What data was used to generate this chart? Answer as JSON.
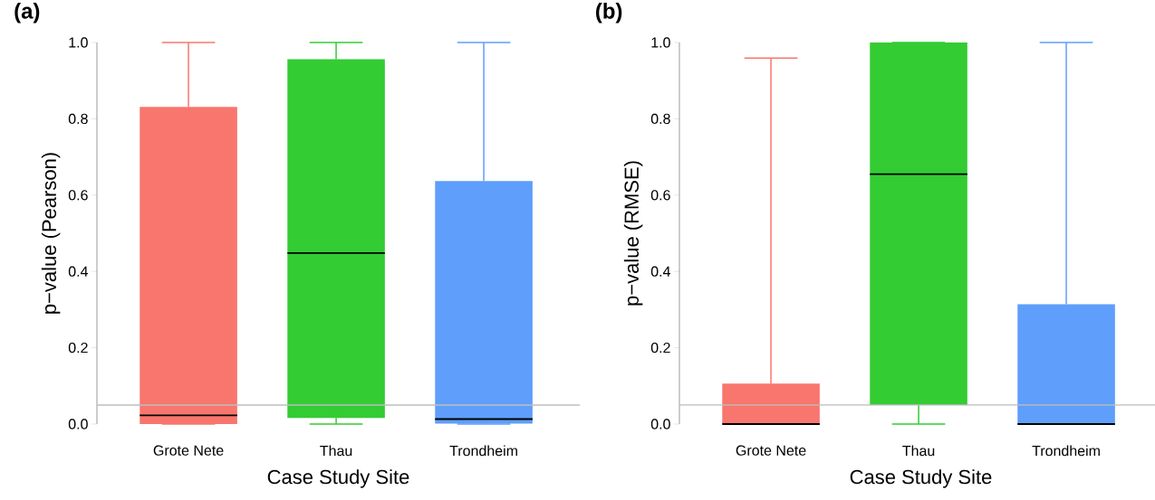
{
  "chart_data": [
    {
      "type": "box",
      "title": "(a)",
      "xlabel": "Case Study Site",
      "ylabel": "p−value (Pearson)",
      "categories": [
        "Grote Nete",
        "Thau",
        "Trondheim"
      ],
      "colors": [
        "#f8766d",
        "#33cc33",
        "#5f9efa"
      ],
      "boxes": [
        {
          "low": 0,
          "q1": 0,
          "median": 0.023,
          "q3": 0.831,
          "high": 1.0
        },
        {
          "low": 0,
          "q1": 0.016,
          "median": 0.448,
          "q3": 0.956,
          "high": 1.0
        },
        {
          "low": 0,
          "q1": 0.001,
          "median": 0.013,
          "q3": 0.637,
          "high": 1.0
        }
      ],
      "ylim": [
        0,
        1
      ],
      "yticks": [
        {
          "value": 0,
          "label": "0.0"
        },
        {
          "value": 0.2,
          "label": "0.2"
        },
        {
          "value": 0.4,
          "label": "0.4"
        },
        {
          "value": 0.6,
          "label": "0.6"
        },
        {
          "value": 0.8,
          "label": "0.8"
        },
        {
          "value": 1,
          "label": "1.0"
        }
      ],
      "ref_lines": [
        {
          "axis": "y",
          "value": 0.05,
          "color": "#bebebe"
        }
      ]
    },
    {
      "type": "box",
      "title": "(b)",
      "xlabel": "Case Study Site",
      "ylabel": "p−value (RMSE)",
      "categories": [
        "Grote Nete",
        "Thau",
        "Trondheim"
      ],
      "colors": [
        "#f8766d",
        "#33cc33",
        "#5f9efa"
      ],
      "boxes": [
        {
          "low": 0,
          "q1": 0,
          "median": 0,
          "q3": 0.106,
          "high": 0.959
        },
        {
          "low": 0,
          "q1": 0.05,
          "median": 0.655,
          "q3": 1.0,
          "high": 1.0
        },
        {
          "low": 0,
          "q1": 0,
          "median": 0,
          "q3": 0.314,
          "high": 1.0
        }
      ],
      "ylim": [
        0,
        1
      ],
      "yticks": [
        {
          "value": 0,
          "label": "0.0"
        },
        {
          "value": 0.2,
          "label": "0.2"
        },
        {
          "value": 0.4,
          "label": "0.4"
        },
        {
          "value": 0.6,
          "label": "0.6"
        },
        {
          "value": 0.8,
          "label": "0.8"
        },
        {
          "value": 1,
          "label": "1.0"
        }
      ],
      "ref_lines": [
        {
          "axis": "y",
          "value": 0.05,
          "color": "#bebebe"
        }
      ]
    }
  ]
}
